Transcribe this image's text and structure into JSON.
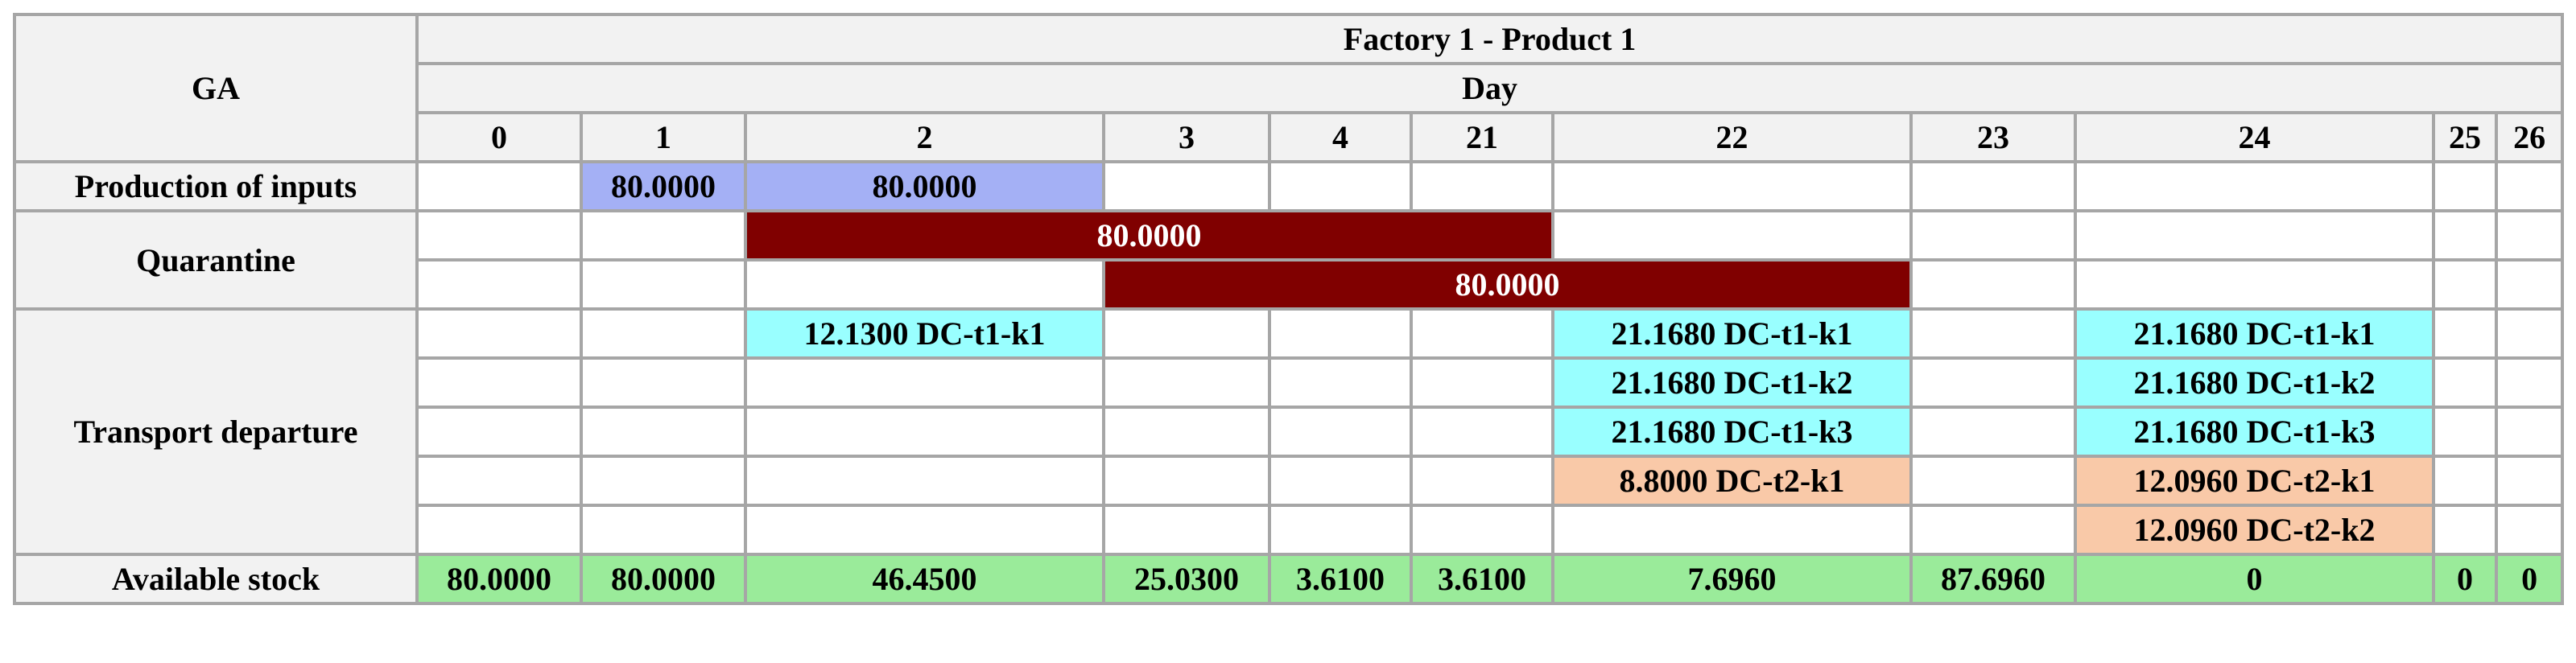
{
  "header": {
    "corner": "GA",
    "title": "Factory 1 - Product 1",
    "subtitle": "Day",
    "days": [
      "0",
      "1",
      "2",
      "3",
      "4",
      "21",
      "22",
      "23",
      "24",
      "25",
      "26"
    ]
  },
  "rows": {
    "production": {
      "label": "Production of inputs",
      "cells": [
        "80.0000",
        "80.0000"
      ]
    },
    "quarantine": {
      "label": "Quarantine",
      "bars": [
        "80.0000",
        "80.0000"
      ]
    },
    "transport": {
      "label": "Transport departure",
      "day_2": [
        "12.1300 DC-t1-k1"
      ],
      "day_22": [
        "21.1680 DC-t1-k1",
        "21.1680 DC-t1-k2",
        "21.1680 DC-t1-k3",
        "8.8000 DC-t2-k1"
      ],
      "day_24": [
        "21.1680 DC-t1-k1",
        "21.1680 DC-t1-k2",
        "21.1680 DC-t1-k3",
        "12.0960 DC-t2-k1",
        "12.0960 DC-t2-k2"
      ]
    },
    "stock": {
      "label": "Available stock",
      "values": [
        "80.0000",
        "80.0000",
        "46.4500",
        "25.0300",
        "3.6100",
        "3.6100",
        "7.6960",
        "87.6960",
        "0",
        "0",
        "0"
      ]
    }
  }
}
